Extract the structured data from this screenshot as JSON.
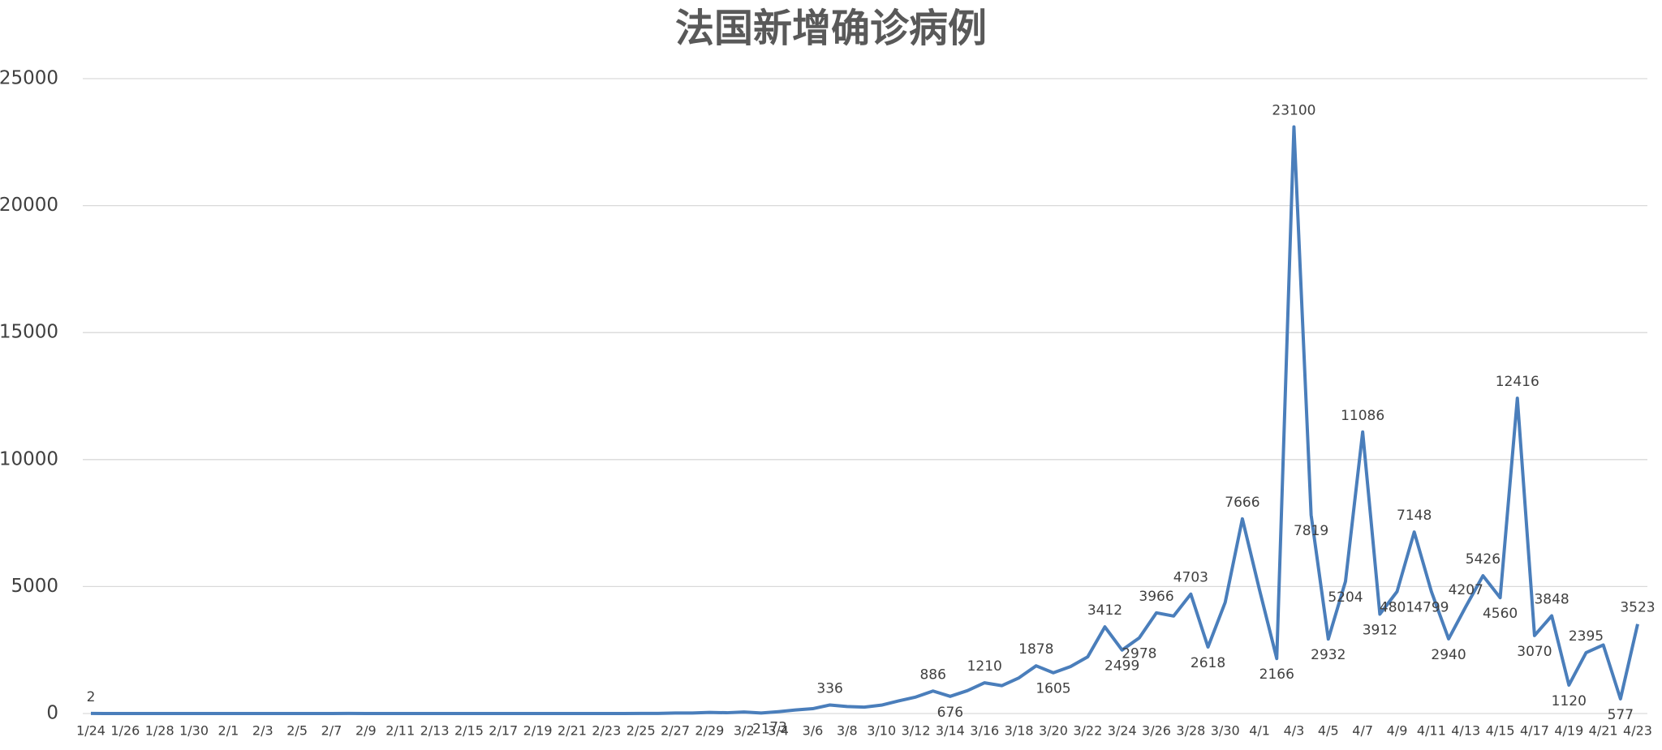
{
  "chart_data": {
    "type": "line",
    "title": "法国新增确诊病例",
    "categories": [
      "1/24",
      null,
      "1/26",
      null,
      "1/28",
      null,
      "1/30",
      null,
      "2/1",
      null,
      "2/3",
      null,
      "2/5",
      null,
      "2/7",
      null,
      "2/9",
      null,
      "2/11",
      null,
      "2/13",
      null,
      "2/15",
      null,
      "2/17",
      null,
      "2/19",
      null,
      "2/21",
      null,
      "2/23",
      null,
      "2/25",
      null,
      "2/27",
      null,
      "2/29",
      null,
      "3/2",
      null,
      "3/4",
      null,
      "3/6",
      null,
      "3/8",
      null,
      "3/10",
      null,
      "3/12",
      null,
      "3/14",
      null,
      "3/16",
      null,
      "3/18",
      null,
      "3/20",
      null,
      "3/22",
      null,
      "3/24",
      null,
      "3/26",
      null,
      "3/28",
      null,
      "3/30",
      null,
      "4/1",
      null,
      "4/3",
      null,
      "4/5",
      null,
      "4/7",
      null,
      "4/9",
      null,
      "4/11",
      null,
      "4/13",
      null,
      "4/15",
      null,
      "4/17",
      null,
      "4/19",
      null,
      "4/21",
      null,
      "4/23"
    ],
    "values": [
      2,
      0,
      0,
      0,
      0,
      1,
      0,
      0,
      0,
      0,
      0,
      0,
      0,
      0,
      0,
      5,
      0,
      0,
      0,
      0,
      0,
      0,
      1,
      0,
      0,
      0,
      0,
      0,
      0,
      0,
      0,
      0,
      2,
      4,
      20,
      19,
      43,
      30,
      61,
      21,
      73,
      138,
      190,
      336,
      277,
      250,
      331,
      497,
      650,
      886,
      676,
      900,
      1210,
      1097,
      1404,
      1878,
      1605,
      1847,
      2230,
      3412,
      2499,
      2978,
      3966,
      3838,
      4703,
      2618,
      4376,
      7666,
      4861,
      2166,
      23100,
      7819,
      2932,
      5204,
      11086,
      3912,
      4801,
      7148,
      4799,
      2940,
      4207,
      5426,
      4560,
      12416,
      3070,
      3848,
      1120,
      2395,
      2700,
      577,
      3523
    ],
    "value_labels": [
      "2",
      null,
      null,
      null,
      null,
      null,
      null,
      null,
      null,
      null,
      null,
      null,
      null,
      null,
      null,
      null,
      null,
      null,
      null,
      null,
      null,
      null,
      null,
      null,
      null,
      null,
      null,
      null,
      null,
      null,
      null,
      null,
      null,
      null,
      null,
      null,
      null,
      null,
      null,
      "21",
      "73",
      null,
      null,
      "336",
      null,
      null,
      null,
      null,
      null,
      "886",
      "676",
      null,
      "1210",
      null,
      null,
      "1878",
      "1605",
      null,
      null,
      "3412",
      "2499",
      "2978",
      "3966",
      null,
      "4703",
      "2618",
      null,
      "7666",
      null,
      "2166",
      "23100",
      "7819",
      "2932",
      "5204",
      "11086",
      "3912",
      "4801",
      "7148",
      "4799",
      "2940",
      "4207",
      "5426",
      "4560",
      "12416",
      "3070",
      "3848",
      "1120",
      "2395",
      null,
      "577",
      "3523"
    ],
    "color": "#4a7ebb",
    "ylim": [
      0,
      25000
    ],
    "yticks": [
      0,
      5000,
      10000,
      15000,
      20000,
      25000
    ],
    "grid": true
  }
}
